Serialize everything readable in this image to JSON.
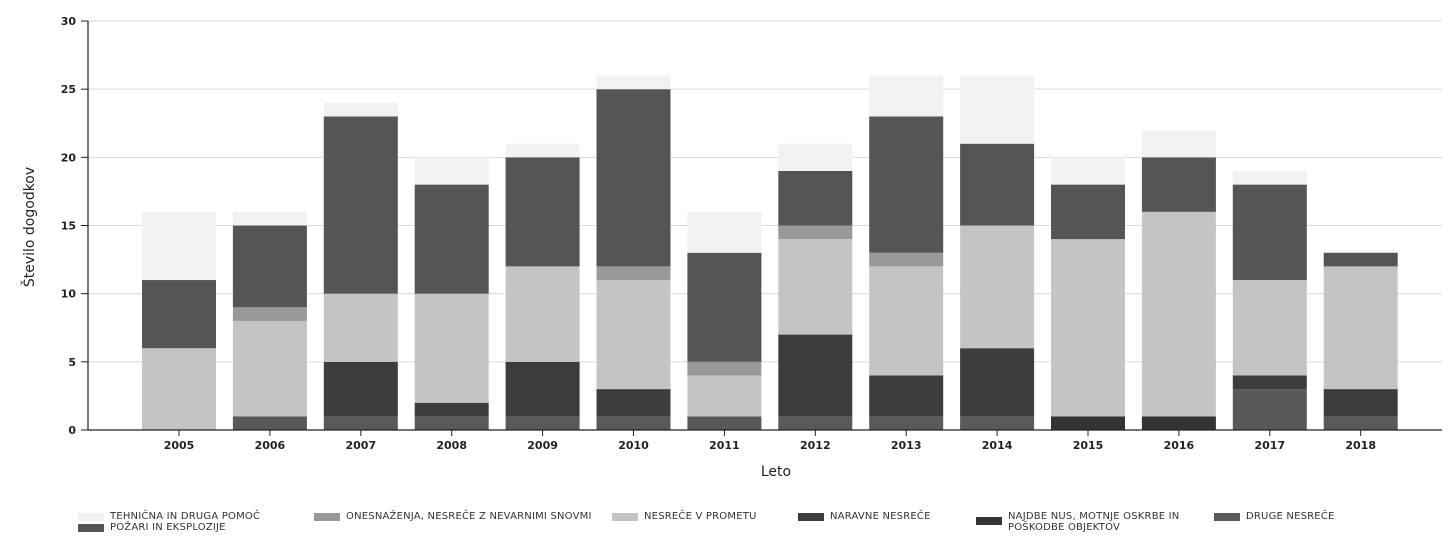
{
  "chart_data": {
    "type": "bar",
    "stacked": true,
    "title": "",
    "xlabel": "Leto",
    "ylabel": "Število dogodkov",
    "ylim": [
      0,
      30
    ],
    "yticks": [
      0,
      5,
      10,
      15,
      20,
      25,
      30
    ],
    "grid": true,
    "legend_position": "bottom",
    "categories": [
      "2005",
      "2006",
      "2007",
      "2008",
      "2009",
      "2010",
      "2011",
      "2012",
      "2013",
      "2014",
      "2015",
      "2016",
      "2017",
      "2018"
    ],
    "series": [
      {
        "name": "DRUGE NESREČE",
        "color": "#595959",
        "values": [
          0,
          1,
          1,
          1,
          1,
          1,
          1,
          1,
          1,
          1,
          0,
          0,
          3,
          1
        ]
      },
      {
        "name": "NAJDBE NUS, MOTNJE OSKRBE IN POŠKODBE OBJEKTOV",
        "color": "#333333",
        "values": [
          0,
          0,
          0,
          0,
          0,
          0,
          0,
          0,
          0,
          0,
          1,
          1,
          0,
          0
        ]
      },
      {
        "name": "NARAVNE NESREČE",
        "color": "#3d3d3d",
        "values": [
          0,
          0,
          4,
          1,
          4,
          2,
          0,
          6,
          3,
          5,
          0,
          0,
          1,
          2
        ]
      },
      {
        "name": "NESREČE V PROMETU",
        "color": "#c4c4c4",
        "values": [
          6,
          7,
          5,
          8,
          7,
          8,
          3,
          7,
          8,
          9,
          13,
          15,
          7,
          9
        ]
      },
      {
        "name": "ONESNAŽENJA, NESREČE Z NEVARNIMI SNOVMI",
        "color": "#999999",
        "values": [
          0,
          1,
          0,
          0,
          0,
          1,
          1,
          1,
          1,
          0,
          0,
          0,
          0,
          0
        ]
      },
      {
        "name": "POŽARI IN EKSPLOZIJE",
        "color": "#555555",
        "values": [
          5,
          6,
          13,
          8,
          8,
          13,
          8,
          4,
          10,
          6,
          4,
          4,
          7,
          1
        ]
      },
      {
        "name": "TEHNIČNA IN DRUGA POMOČ",
        "color": "#f2f2f2",
        "values": [
          5,
          1,
          1,
          2,
          1,
          1,
          3,
          2,
          3,
          5,
          2,
          2,
          1,
          0
        ]
      }
    ],
    "legend_order": [
      {
        "label": "TEHNIČNA IN DRUGA POMOČ",
        "color": "#f2f2f2"
      },
      {
        "label": "POŽARI IN EKSPLOZIJE",
        "color": "#555555"
      },
      {
        "label": "ONESNAŽENJA, NESREČE Z NEVARNIMI SNOVMI",
        "color": "#999999"
      },
      {
        "label": "NESREČE V PROMETU",
        "color": "#c4c4c4"
      },
      {
        "label": "NARAVNE NESREČE",
        "color": "#3d3d3d"
      },
      {
        "label": "NAJDBE NUS, MOTNJE OSKRBE IN POŠKODBE OBJEKTOV",
        "color": "#333333"
      },
      {
        "label": "DRUGE NESREČE",
        "color": "#595959"
      }
    ]
  }
}
